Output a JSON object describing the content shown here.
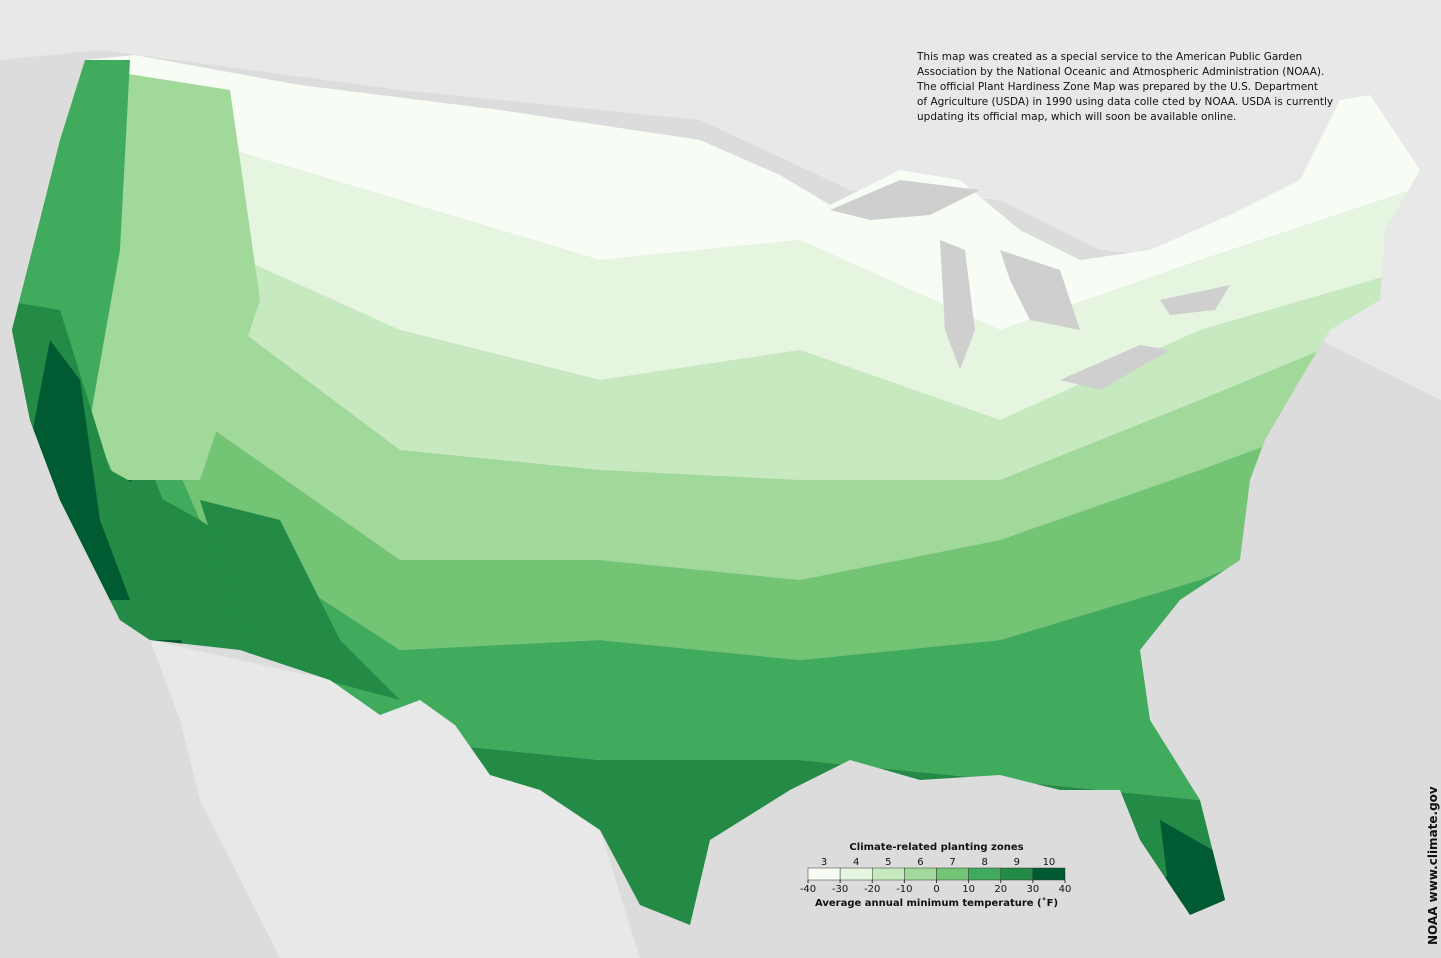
{
  "note": [
    "This map was created as a special service to the American Public Garden",
    "Association by the National Oceanic and Atmospheric Administration (NOAA).",
    "The official Plant Hardiness Zone Map was prepared by the U.S. Department",
    "of Agriculture (USDA) in 1990 using data colle cted by NOAA. USDA is currently",
    "updating its official map, which will soon be available online."
  ],
  "legend": {
    "title": "Climate-related planting zones",
    "zones": [
      3,
      4,
      5,
      6,
      7,
      8,
      9,
      10
    ],
    "colors": [
      "#f7fcf5",
      "#e5f5e0",
      "#c7e9c0",
      "#a1d99b",
      "#74c476",
      "#41ab5d",
      "#238b45",
      "#005a32"
    ],
    "temperatures": [
      -40,
      -30,
      -20,
      -10,
      0,
      10,
      20,
      30,
      40
    ],
    "caption": "Average annual minimum temperature (˚F)"
  },
  "credit": "NOAA www.climate.gov"
}
